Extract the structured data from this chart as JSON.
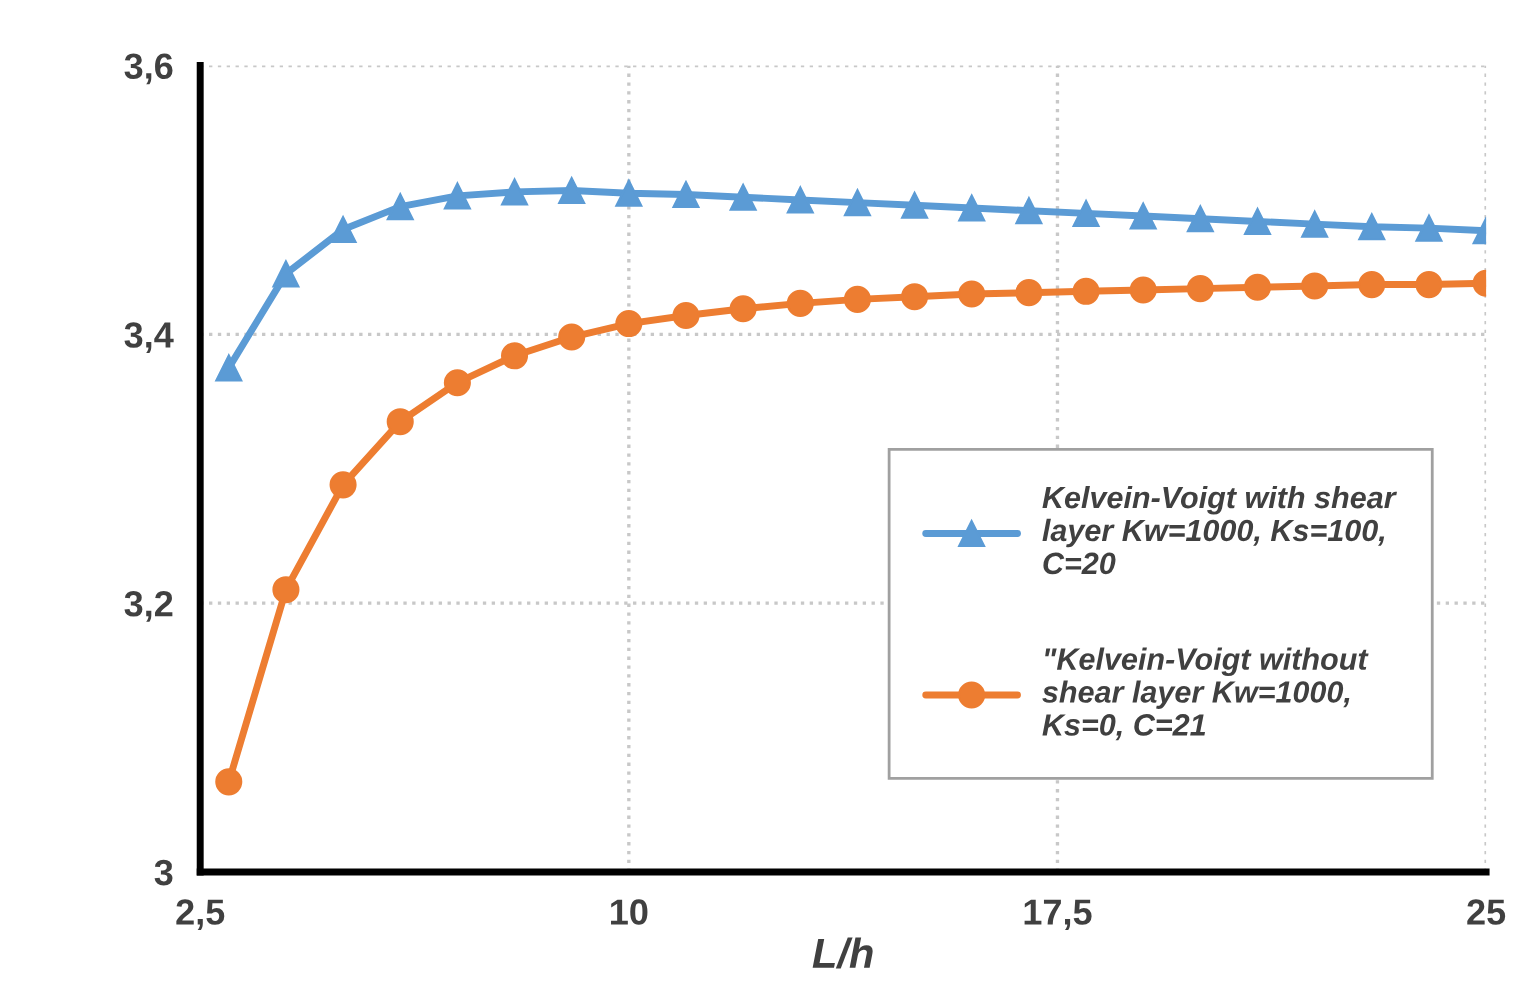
{
  "chart_data": {
    "type": "line",
    "xlabel": "L/h",
    "x": [
      3,
      4,
      5,
      6,
      7,
      8,
      9,
      10,
      11,
      12,
      13,
      14,
      15,
      16,
      17,
      18,
      19,
      20,
      21,
      22,
      23,
      24,
      25
    ],
    "series": [
      {
        "name": "Kelvein-Voigt with shear\nlayer Kw=1000, Ks=100,\nC=20",
        "color": "#5b9bd5",
        "marker": "triangle",
        "values": [
          3.375,
          3.445,
          3.478,
          3.495,
          3.503,
          3.506,
          3.507,
          3.505,
          3.504,
          3.502,
          3.5,
          3.498,
          3.496,
          3.494,
          3.492,
          3.49,
          3.488,
          3.486,
          3.484,
          3.482,
          3.48,
          3.479,
          3.477
        ]
      },
      {
        "name": "\"Kelvein-Voigt without\nshear layer Kw=1000,\nKs=0, C=21",
        "color": "#ed7d31",
        "marker": "circle",
        "values": [
          3.067,
          3.21,
          3.288,
          3.335,
          3.364,
          3.384,
          3.398,
          3.408,
          3.414,
          3.419,
          3.423,
          3.426,
          3.428,
          3.43,
          3.431,
          3.432,
          3.433,
          3.434,
          3.435,
          3.436,
          3.437,
          3.437,
          3.438
        ]
      }
    ],
    "xlim": [
      2.5,
      25
    ],
    "xticks": [
      {
        "value": 2.5,
        "label": "2,5"
      },
      10,
      {
        "value": 17.5,
        "label": "17,5"
      },
      25
    ],
    "ylim": [
      3,
      3.6
    ],
    "yticks": [
      3,
      {
        "value": 3.2,
        "label": "3,2"
      },
      {
        "value": 3.4,
        "label": "3,4"
      },
      {
        "value": 3.6,
        "label": "3,6"
      }
    ],
    "grid": true,
    "legend": "right",
    "line_style": "solid"
  }
}
